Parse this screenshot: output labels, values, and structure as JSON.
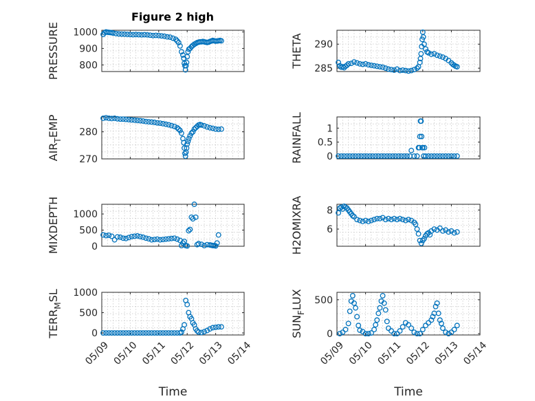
{
  "figure_title": "Figure 2 high",
  "marker_color": "#0072bd",
  "x_tick_labels": [
    "05/09",
    "05/10",
    "05/11",
    "05/12",
    "05/13",
    "05/14"
  ],
  "x_axis_label": "Time",
  "chart_data": [
    {
      "type": "scatter",
      "ylabel": "PRESSURE",
      "ylabel_sub": null,
      "xlabel": "",
      "ylim": [
        760,
        1010
      ],
      "yticks": [
        800,
        900,
        1000
      ],
      "ytick_labels": [
        "800",
        "900",
        "1000"
      ],
      "xlim": [
        0,
        5
      ],
      "grid": true,
      "x": [
        0.05,
        0.1,
        0.15,
        0.2,
        0.25,
        0.3,
        0.35,
        0.4,
        0.5,
        0.6,
        0.7,
        0.8,
        0.9,
        1.0,
        1.1,
        1.2,
        1.3,
        1.4,
        1.5,
        1.6,
        1.7,
        1.8,
        1.9,
        2.0,
        2.1,
        2.2,
        2.3,
        2.4,
        2.5,
        2.6,
        2.65,
        2.7,
        2.75,
        2.8,
        2.85,
        2.88,
        2.9,
        2.92,
        2.94,
        2.96,
        2.98,
        3.0,
        3.03,
        3.06,
        3.1,
        3.15,
        3.2,
        3.25,
        3.3,
        3.35,
        3.4,
        3.45,
        3.5,
        3.55,
        3.6,
        3.65,
        3.7,
        3.75,
        3.8,
        3.85,
        3.9,
        3.95,
        4.0,
        4.05,
        4.1,
        4.15,
        4.2
      ],
      "y": [
        985,
        995,
        1000,
        998,
        997,
        996,
        995,
        993,
        990,
        988,
        987,
        986,
        985,
        984,
        983,
        984,
        983,
        982,
        983,
        982,
        980,
        978,
        979,
        978,
        976,
        974,
        970,
        968,
        962,
        955,
        945,
        935,
        915,
        880,
        860,
        840,
        810,
        795,
        770,
        795,
        815,
        850,
        880,
        895,
        900,
        910,
        918,
        925,
        930,
        935,
        938,
        940,
        940,
        942,
        940,
        938,
        936,
        938,
        942,
        945,
        948,
        946,
        944,
        945,
        946,
        948,
        946
      ]
    },
    {
      "type": "scatter",
      "ylabel": "THETA",
      "ylabel_sub": null,
      "xlabel": "",
      "ylim": [
        284.3,
        292.9
      ],
      "yticks": [
        285,
        290
      ],
      "ytick_labels": [
        "285",
        "290"
      ],
      "xlim": [
        0,
        5
      ],
      "grid": true,
      "x": [
        0.05,
        0.1,
        0.15,
        0.2,
        0.25,
        0.3,
        0.35,
        0.4,
        0.5,
        0.6,
        0.7,
        0.8,
        0.9,
        1.0,
        1.1,
        1.2,
        1.3,
        1.4,
        1.5,
        1.6,
        1.7,
        1.8,
        1.9,
        2.0,
        2.1,
        2.2,
        2.3,
        2.4,
        2.5,
        2.6,
        2.7,
        2.8,
        2.85,
        2.9,
        2.92,
        2.94,
        2.96,
        2.98,
        3.0,
        3.02,
        3.05,
        3.1,
        3.15,
        3.2,
        3.3,
        3.4,
        3.5,
        3.6,
        3.7,
        3.8,
        3.9,
        4.0,
        4.05,
        4.1,
        4.15,
        4.2
      ],
      "y": [
        286.2,
        285.5,
        285.2,
        285.3,
        285.1,
        285.4,
        285.6,
        285.9,
        286.0,
        286.3,
        286.1,
        285.9,
        285.8,
        285.9,
        285.7,
        285.6,
        285.5,
        285.4,
        285.3,
        285.2,
        285.0,
        284.8,
        284.7,
        284.6,
        284.8,
        284.5,
        284.6,
        284.5,
        284.4,
        284.5,
        284.7,
        285.0,
        285.3,
        286.2,
        287.0,
        288.0,
        289.5,
        291.0,
        292.5,
        291.5,
        290.0,
        289.0,
        288.4,
        288.2,
        287.9,
        288.0,
        287.7,
        287.5,
        287.3,
        287.0,
        286.6,
        286.1,
        285.8,
        285.6,
        285.4,
        285.3
      ]
    },
    {
      "type": "scatter",
      "ylabel": "AIR",
      "ylabel_sub": "T",
      "ylabel_tail": "EMP",
      "xlabel": "",
      "ylim": [
        270,
        285.5
      ],
      "yticks": [
        270,
        280
      ],
      "ytick_labels": [
        "270",
        "280"
      ],
      "xlim": [
        0,
        5
      ],
      "grid": true,
      "x": [
        0.05,
        0.15,
        0.25,
        0.35,
        0.45,
        0.55,
        0.65,
        0.75,
        0.85,
        0.95,
        1.05,
        1.15,
        1.25,
        1.35,
        1.45,
        1.55,
        1.65,
        1.75,
        1.85,
        1.95,
        2.05,
        2.15,
        2.25,
        2.35,
        2.45,
        2.55,
        2.65,
        2.7,
        2.75,
        2.8,
        2.85,
        2.88,
        2.9,
        2.92,
        2.94,
        2.96,
        2.98,
        3.0,
        3.03,
        3.06,
        3.1,
        3.15,
        3.2,
        3.25,
        3.3,
        3.35,
        3.4,
        3.45,
        3.5,
        3.6,
        3.7,
        3.8,
        3.9,
        4.0,
        4.1,
        4.2
      ],
      "y": [
        285.0,
        285.2,
        285.0,
        284.9,
        285.0,
        284.8,
        284.7,
        284.7,
        284.6,
        284.5,
        284.4,
        284.3,
        284.2,
        284.1,
        284.0,
        283.8,
        283.7,
        283.6,
        283.5,
        283.3,
        283.2,
        283.0,
        282.8,
        282.6,
        282.3,
        282.0,
        281.5,
        281.0,
        280.5,
        279.5,
        277.5,
        276.0,
        274.0,
        272.0,
        271.0,
        272.5,
        274.0,
        275.5,
        276.5,
        277.5,
        278.5,
        279.5,
        280.0,
        281.0,
        281.5,
        282.0,
        282.5,
        282.7,
        282.5,
        282.2,
        281.8,
        281.5,
        281.3,
        281.0,
        280.9,
        281.0
      ]
    },
    {
      "type": "scatter",
      "ylabel": "RAINFALL",
      "ylabel_sub": null,
      "xlabel": "",
      "ylim": [
        -0.1,
        1.4
      ],
      "yticks": [
        0,
        0.5,
        1
      ],
      "ytick_labels": [
        "0",
        "0.5",
        "1"
      ],
      "xlim": [
        0,
        5
      ],
      "grid": true,
      "x": [
        0.05,
        0.15,
        0.25,
        0.35,
        0.45,
        0.55,
        0.65,
        0.75,
        0.85,
        0.95,
        1.05,
        1.15,
        1.25,
        1.35,
        1.45,
        1.55,
        1.65,
        1.75,
        1.85,
        1.95,
        2.05,
        2.15,
        2.25,
        2.35,
        2.45,
        2.55,
        2.6,
        2.7,
        2.8,
        2.85,
        2.88,
        2.9,
        2.92,
        2.94,
        2.96,
        2.98,
        3.0,
        3.03,
        3.06,
        3.1,
        3.2,
        3.3,
        3.4,
        3.5,
        3.6,
        3.7,
        3.8,
        3.9,
        4.0,
        4.1,
        4.2
      ],
      "y": [
        0,
        0,
        0,
        0,
        0,
        0,
        0,
        0,
        0,
        0,
        0,
        0,
        0,
        0,
        0,
        0,
        0,
        0,
        0,
        0,
        0,
        0,
        0,
        0,
        0,
        0,
        0.2,
        0,
        0,
        0.3,
        0.3,
        0.7,
        1.25,
        1.25,
        0.7,
        0.3,
        0.3,
        0,
        0.3,
        0,
        0,
        0,
        0,
        0,
        0,
        0,
        0,
        0,
        0,
        0,
        0
      ]
    },
    {
      "type": "scatter",
      "ylabel": "MIXDEPTH",
      "ylabel_sub": null,
      "xlabel": "",
      "ylim": [
        0,
        1300
      ],
      "yticks": [
        0,
        500,
        1000
      ],
      "ytick_labels": [
        "0",
        "500",
        "1000"
      ],
      "xlim": [
        0,
        5
      ],
      "grid": true,
      "x": [
        0.05,
        0.15,
        0.25,
        0.35,
        0.45,
        0.55,
        0.65,
        0.75,
        0.85,
        0.95,
        1.05,
        1.15,
        1.25,
        1.35,
        1.45,
        1.55,
        1.65,
        1.75,
        1.85,
        1.95,
        2.05,
        2.15,
        2.25,
        2.35,
        2.45,
        2.55,
        2.65,
        2.75,
        2.8,
        2.85,
        2.9,
        2.95,
        3.0,
        3.05,
        3.1,
        3.15,
        3.2,
        3.25,
        3.3,
        3.35,
        3.4,
        3.5,
        3.6,
        3.7,
        3.8,
        3.85,
        3.9,
        3.95,
        4.0,
        4.05,
        4.1
      ],
      "y": [
        350,
        330,
        340,
        310,
        200,
        290,
        280,
        250,
        240,
        270,
        300,
        310,
        320,
        300,
        280,
        250,
        230,
        200,
        210,
        220,
        200,
        210,
        220,
        230,
        240,
        250,
        220,
        180,
        20,
        100,
        150,
        20,
        10,
        480,
        520,
        900,
        850,
        1300,
        900,
        50,
        80,
        60,
        20,
        50,
        40,
        30,
        20,
        20,
        10,
        100,
        350
      ]
    },
    {
      "type": "scatter",
      "ylabel": "H2OMIXRA",
      "ylabel_sub": null,
      "xlabel": "",
      "ylim": [
        4.2,
        8.6
      ],
      "yticks": [
        6,
        8
      ],
      "ytick_labels": [
        "6",
        "8"
      ],
      "xlim": [
        0,
        5
      ],
      "grid": true,
      "x": [
        0.05,
        0.1,
        0.15,
        0.2,
        0.25,
        0.3,
        0.35,
        0.4,
        0.45,
        0.5,
        0.55,
        0.6,
        0.7,
        0.8,
        0.9,
        1.0,
        1.1,
        1.2,
        1.3,
        1.4,
        1.5,
        1.6,
        1.7,
        1.8,
        1.9,
        2.0,
        2.1,
        2.2,
        2.3,
        2.4,
        2.5,
        2.6,
        2.7,
        2.75,
        2.8,
        2.85,
        2.9,
        2.95,
        3.0,
        3.05,
        3.1,
        3.15,
        3.2,
        3.25,
        3.3,
        3.4,
        3.5,
        3.6,
        3.7,
        3.8,
        3.9,
        4.0,
        4.1,
        4.2
      ],
      "y": [
        7.7,
        8.2,
        8.3,
        8.1,
        8.4,
        8.3,
        8.2,
        8.0,
        7.8,
        7.6,
        7.4,
        7.3,
        7.0,
        6.9,
        6.8,
        6.9,
        6.8,
        6.9,
        7.0,
        7.1,
        7.1,
        7.2,
        7.0,
        7.1,
        7.0,
        7.1,
        7.0,
        7.1,
        7.0,
        6.9,
        7.0,
        6.9,
        6.7,
        6.5,
        6.0,
        5.5,
        4.8,
        4.5,
        4.8,
        5.0,
        5.3,
        5.5,
        5.6,
        5.4,
        5.8,
        6.0,
        5.9,
        6.1,
        5.8,
        5.9,
        5.7,
        5.8,
        5.6,
        5.7
      ]
    },
    {
      "type": "scatter",
      "ylabel": "TERR",
      "ylabel_sub": "M",
      "ylabel_tail": "SL",
      "xlabel": "Time",
      "ylim": [
        -50,
        1000
      ],
      "yticks": [
        0,
        500,
        1000
      ],
      "ytick_labels": [
        "0",
        "500",
        "1000"
      ],
      "xlim": [
        0,
        5
      ],
      "grid": true,
      "x": [
        0.05,
        0.15,
        0.25,
        0.35,
        0.45,
        0.55,
        0.65,
        0.75,
        0.85,
        0.95,
        1.05,
        1.15,
        1.25,
        1.35,
        1.45,
        1.55,
        1.65,
        1.75,
        1.85,
        1.95,
        2.05,
        2.15,
        2.25,
        2.35,
        2.45,
        2.55,
        2.65,
        2.75,
        2.8,
        2.85,
        2.9,
        2.95,
        3.0,
        3.05,
        3.1,
        3.15,
        3.2,
        3.25,
        3.3,
        3.35,
        3.4,
        3.5,
        3.6,
        3.7,
        3.8,
        3.9,
        4.0,
        4.1,
        4.2
      ],
      "y": [
        0,
        0,
        0,
        0,
        0,
        0,
        0,
        0,
        0,
        0,
        0,
        0,
        0,
        0,
        0,
        0,
        0,
        0,
        0,
        0,
        0,
        0,
        0,
        0,
        0,
        0,
        0,
        0,
        20,
        100,
        200,
        800,
        700,
        500,
        400,
        350,
        250,
        200,
        100,
        50,
        20,
        10,
        30,
        60,
        100,
        130,
        140,
        150,
        150
      ]
    },
    {
      "type": "scatter",
      "ylabel": "SUN",
      "ylabel_sub": "F",
      "ylabel_tail": "LUX",
      "xlabel": "Time",
      "ylim": [
        -20,
        610
      ],
      "yticks": [
        0,
        500
      ],
      "ytick_labels": [
        "0",
        "500"
      ],
      "xlim": [
        0,
        5
      ],
      "grid": true,
      "x": [
        0.1,
        0.2,
        0.3,
        0.4,
        0.45,
        0.5,
        0.55,
        0.6,
        0.65,
        0.7,
        0.75,
        0.8,
        0.9,
        1.0,
        1.1,
        1.2,
        1.3,
        1.35,
        1.4,
        1.45,
        1.5,
        1.55,
        1.6,
        1.65,
        1.7,
        1.75,
        1.8,
        1.9,
        2.0,
        2.1,
        2.2,
        2.3,
        2.4,
        2.5,
        2.6,
        2.7,
        2.8,
        2.9,
        3.0,
        3.1,
        3.2,
        3.3,
        3.35,
        3.4,
        3.45,
        3.5,
        3.55,
        3.6,
        3.65,
        3.7,
        3.8,
        3.9,
        4.0,
        4.1,
        4.2
      ],
      "y": [
        0,
        20,
        60,
        150,
        330,
        480,
        560,
        450,
        380,
        250,
        120,
        50,
        30,
        0,
        0,
        10,
        60,
        130,
        200,
        300,
        380,
        480,
        560,
        450,
        350,
        180,
        80,
        40,
        0,
        0,
        40,
        100,
        160,
        130,
        80,
        20,
        0,
        0,
        60,
        120,
        160,
        200,
        250,
        300,
        400,
        450,
        300,
        200,
        150,
        80,
        20,
        0,
        20,
        60,
        120
      ]
    }
  ]
}
